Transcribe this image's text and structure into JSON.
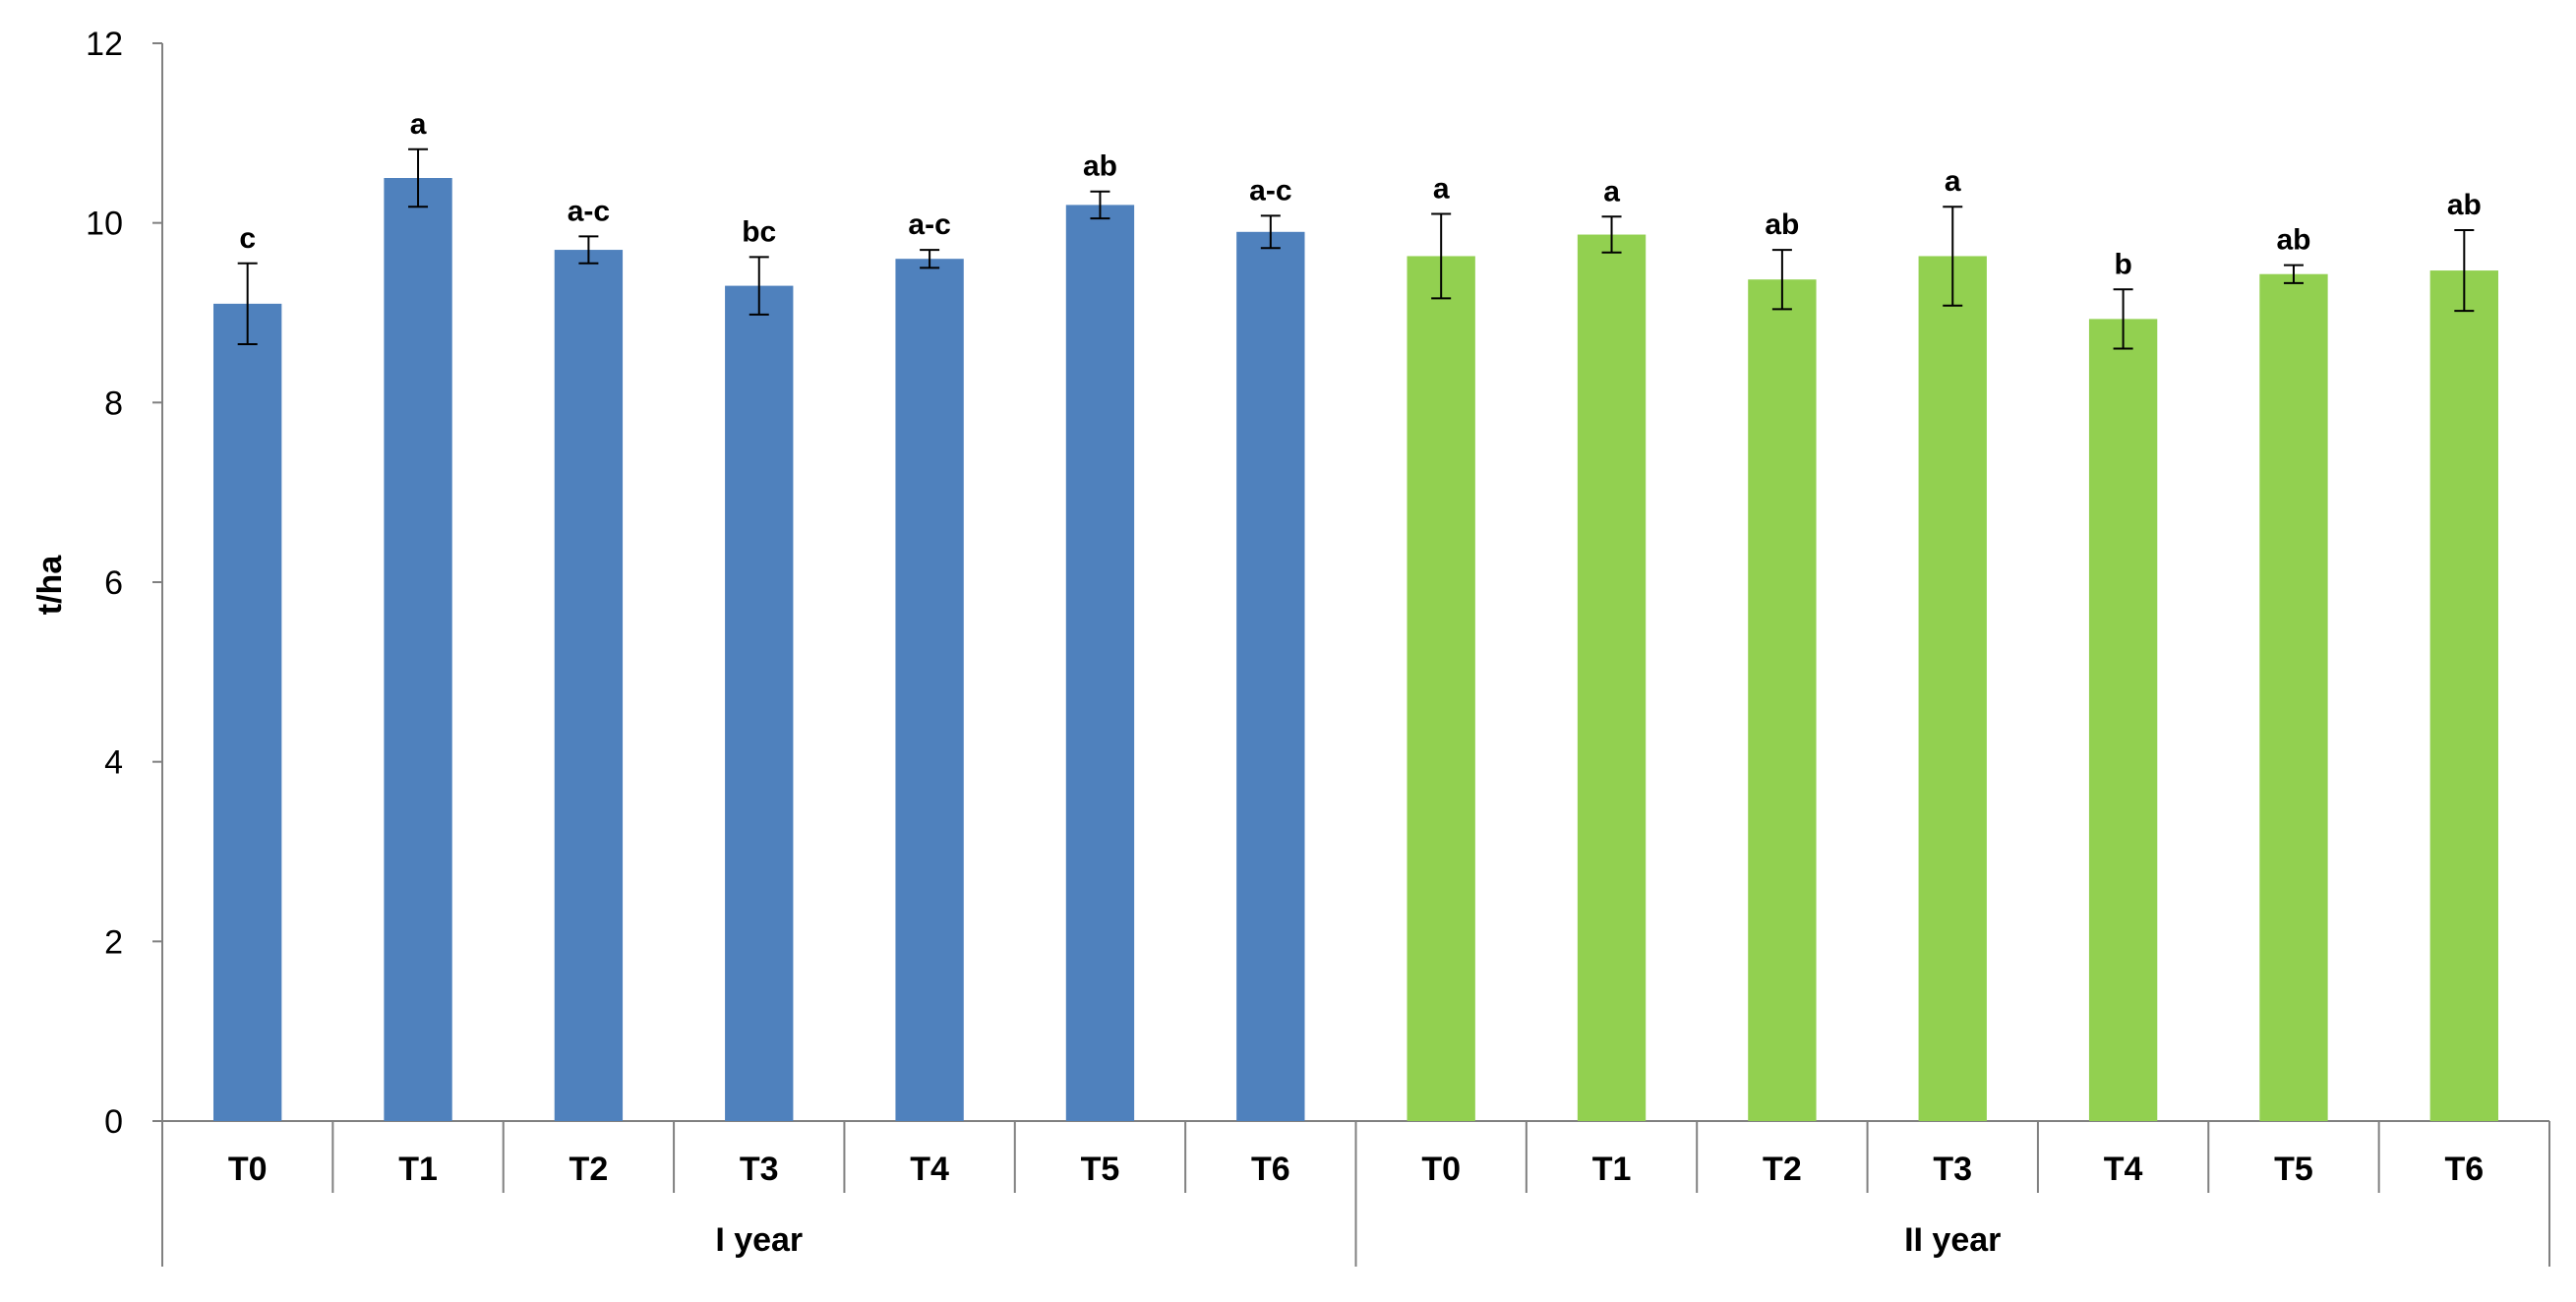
{
  "chart_data": {
    "type": "bar",
    "ylabel": "t/ha",
    "ylim": [
      0,
      12
    ],
    "yticks": [
      "0",
      "2",
      "4",
      "6",
      "8",
      "10",
      "12"
    ],
    "grid": false,
    "groups": [
      {
        "label": "I year",
        "color": "#4F81BD",
        "categories": [
          "T0",
          "T1",
          "T2",
          "T3",
          "T4",
          "T5",
          "T6"
        ],
        "values": [
          9.1,
          10.5,
          9.7,
          9.3,
          9.6,
          10.2,
          9.9
        ],
        "errors": [
          0.45,
          0.32,
          0.15,
          0.32,
          0.1,
          0.15,
          0.18
        ],
        "significance": [
          "c",
          "a",
          "a-c",
          "bc",
          "a-c",
          "ab",
          "a-c"
        ]
      },
      {
        "label": "II year",
        "color": "#92D050",
        "categories": [
          "T0",
          "T1",
          "T2",
          "T3",
          "T4",
          "T5",
          "T6"
        ],
        "values": [
          9.63,
          9.87,
          9.37,
          9.63,
          8.93,
          9.43,
          9.47
        ],
        "errors": [
          0.47,
          0.2,
          0.33,
          0.55,
          0.33,
          0.1,
          0.45
        ],
        "significance": [
          "a",
          "a",
          "ab",
          "a",
          "b",
          "ab",
          "ab"
        ]
      }
    ]
  }
}
